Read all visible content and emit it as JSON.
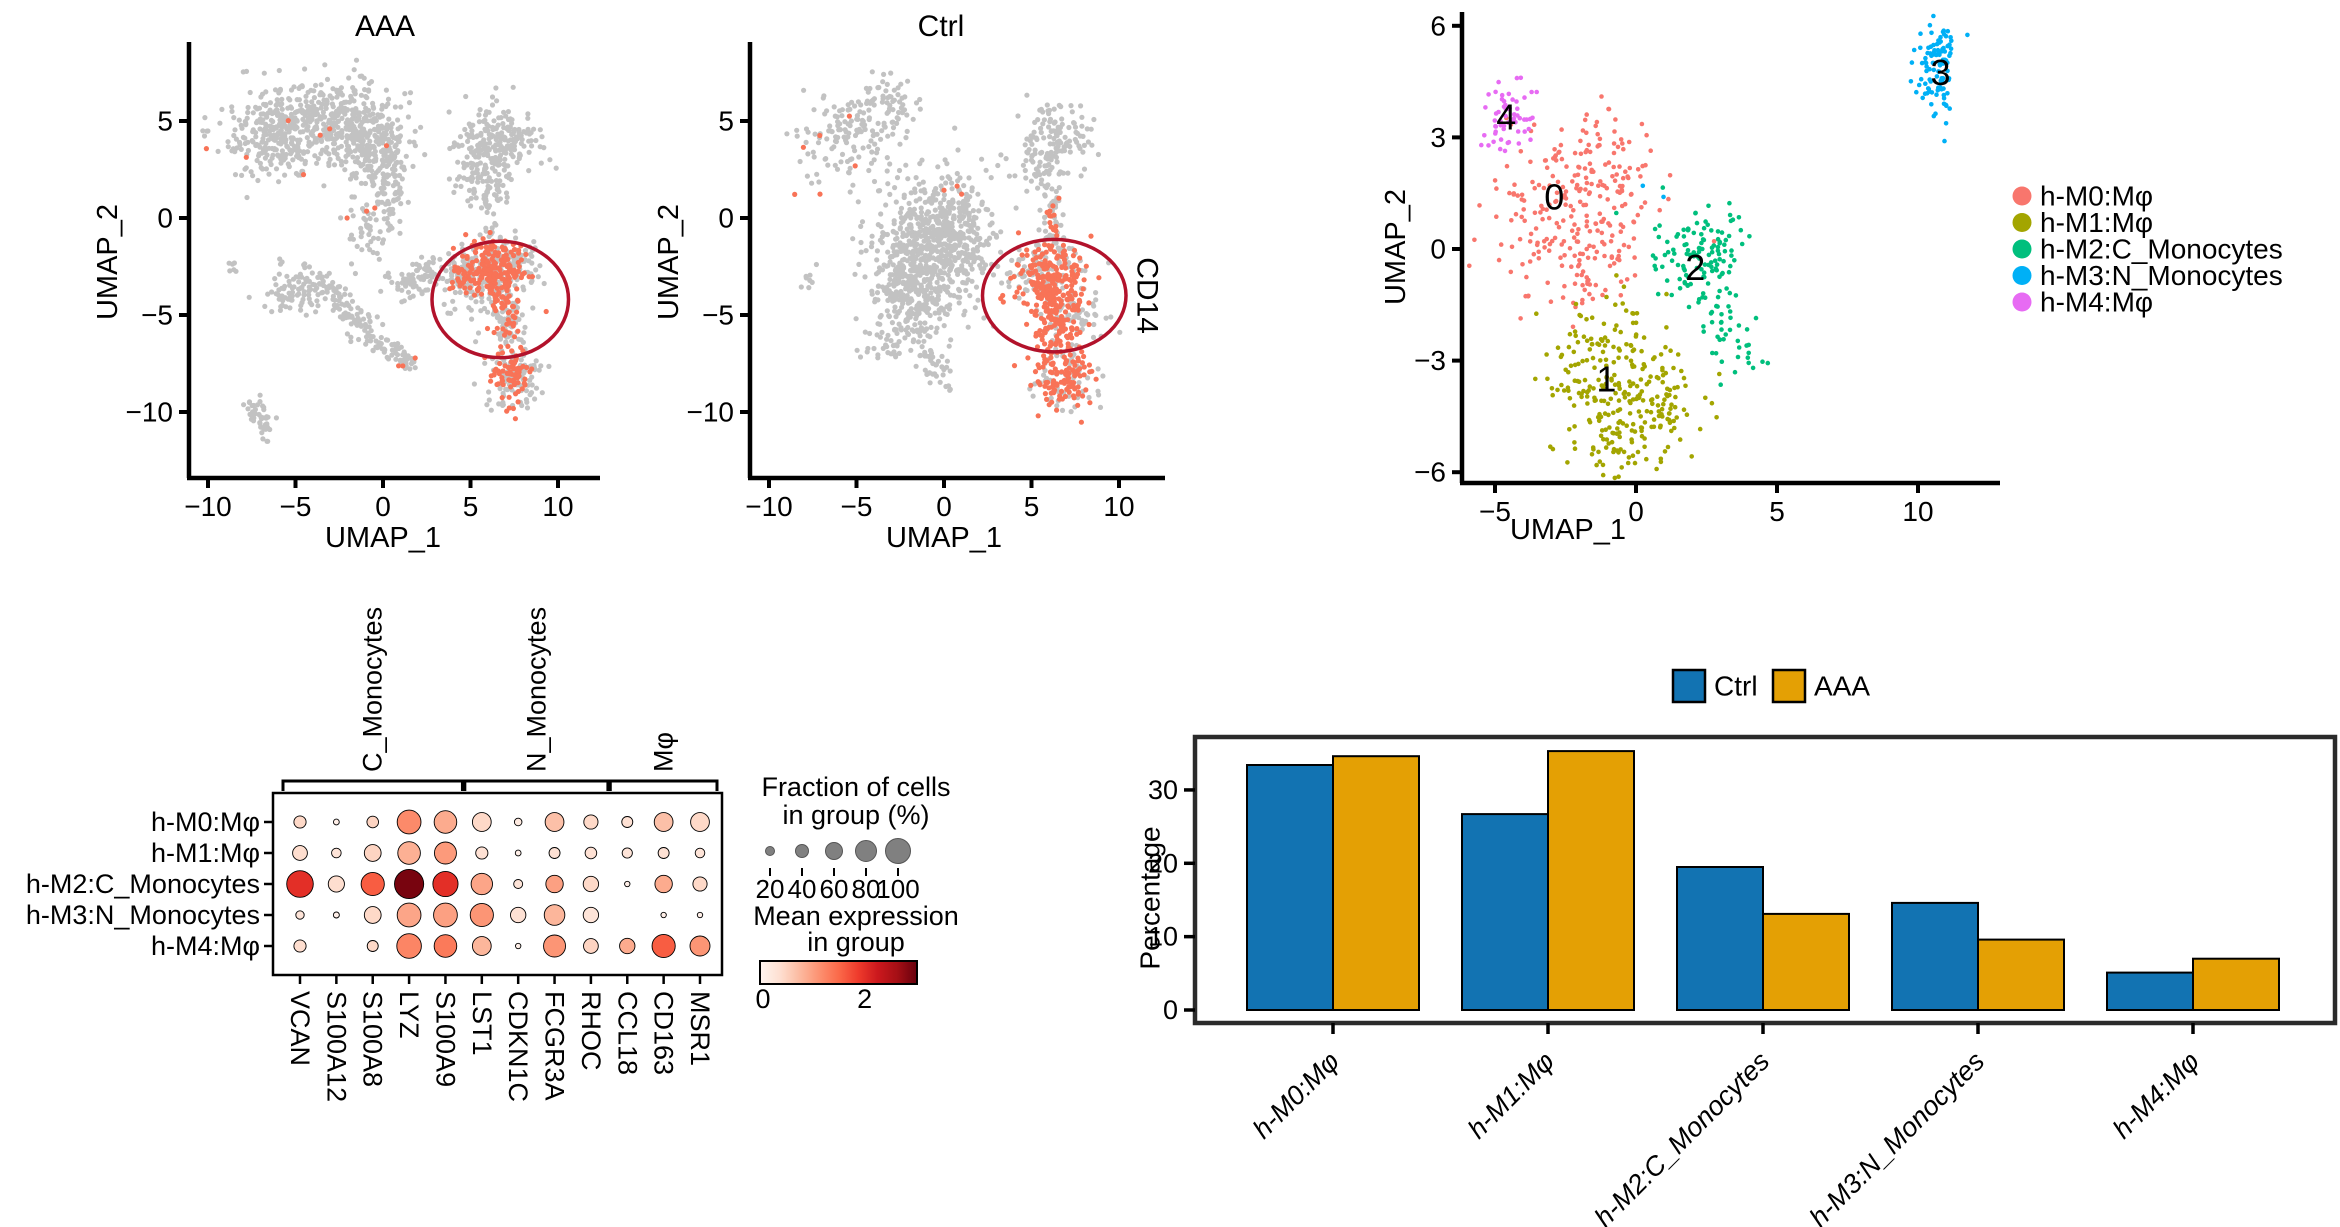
{
  "figure": {
    "background": "#ffffff"
  },
  "chart_data": [
    {
      "id": "umap_aaa",
      "type": "scatter",
      "title": "AAA",
      "xlabel": "UMAP_1",
      "ylabel": "UMAP_2",
      "xticks": [
        -10,
        -5,
        0,
        5,
        10
      ],
      "yticks": [
        5,
        0,
        -5,
        -10
      ],
      "xlim": [
        -11.1,
        12.4
      ],
      "ylim": [
        -13.3,
        9.0
      ],
      "colors": {
        "base": "#C2C2C2",
        "highlight": "#F87357",
        "circle": "#B2122B"
      },
      "circle": {
        "cx": 6.7,
        "cy": -4.2,
        "rx": 3.9,
        "ry": 3.0
      },
      "gray_blobs": [
        {
          "n": 300,
          "c": [
            -6.0,
            4.4
          ],
          "s": [
            1.5,
            1.1
          ]
        },
        {
          "n": 300,
          "c": [
            -2.6,
            5.1
          ],
          "s": [
            1.6,
            1.0
          ]
        },
        {
          "n": 200,
          "c": [
            -0.6,
            3.6
          ],
          "s": [
            1.1,
            1.0
          ]
        },
        {
          "n": 70,
          "c": [
            0.3,
            1.6
          ],
          "s": [
            0.5,
            1.2
          ]
        },
        {
          "n": 50,
          "c": [
            -0.8,
            -0.5
          ],
          "s": [
            0.7,
            1.1
          ]
        },
        {
          "n": 90,
          "c": [
            -5.0,
            -3.8
          ],
          "s": [
            0.85,
            0.75
          ]
        },
        {
          "n": 70,
          "l": [
            -3.5,
            -3.1,
            -1.3,
            -5.7
          ],
          "w": 0.35
        },
        {
          "n": 50,
          "l": [
            -1.6,
            -4.9,
            0.2,
            -7.1
          ],
          "w": 0.3
        },
        {
          "n": 40,
          "c": [
            1.2,
            -3.4
          ],
          "s": [
            0.55,
            0.5
          ]
        },
        {
          "n": 28,
          "c": [
            2.3,
            -2.6
          ],
          "s": [
            0.45,
            0.4
          ]
        },
        {
          "n": 45,
          "l": [
            -7.3,
            -9.4,
            -6.5,
            -11.5
          ],
          "w": 0.28
        },
        {
          "n": 6,
          "c": [
            -8.6,
            -2.6
          ],
          "s": [
            0.18,
            0.18
          ]
        },
        {
          "n": 32,
          "l": [
            0.5,
            -6.3,
            1.7,
            -7.9
          ],
          "w": 0.3
        },
        {
          "n": 210,
          "c": [
            6.6,
            3.9
          ],
          "s": [
            1.15,
            0.95
          ]
        },
        {
          "n": 60,
          "c": [
            5.5,
            2.3
          ],
          "s": [
            0.75,
            0.7
          ]
        },
        {
          "n": 40,
          "c": [
            6.2,
            0.8
          ],
          "s": [
            0.4,
            0.9
          ]
        },
        {
          "n": 190,
          "c": [
            5.8,
            -2.9
          ],
          "s": [
            1.25,
            0.95
          ]
        },
        {
          "n": 70,
          "c": [
            7.4,
            -2.2
          ],
          "s": [
            0.8,
            0.5
          ]
        },
        {
          "n": 60,
          "l": [
            6.8,
            -4.4,
            7.4,
            -6.4
          ],
          "w": 0.45
        },
        {
          "n": 90,
          "c": [
            7.5,
            -8.3
          ],
          "s": [
            0.8,
            0.85
          ]
        },
        {
          "n": 40,
          "c": [
            4.3,
            -3.1
          ],
          "s": [
            0.5,
            0.45
          ]
        }
      ],
      "highlight_blobs": [
        {
          "n": 170,
          "c": [
            6.3,
            -2.6
          ],
          "s": [
            1.05,
            0.75
          ]
        },
        {
          "n": 55,
          "c": [
            7.0,
            -4.4
          ],
          "s": [
            0.5,
            0.9
          ]
        },
        {
          "n": 75,
          "c": [
            7.4,
            -8.2
          ],
          "s": [
            0.7,
            0.75
          ]
        },
        {
          "n": 22,
          "c": [
            4.6,
            -3.2
          ],
          "s": [
            0.5,
            0.4
          ]
        },
        {
          "n": 7,
          "c": [
            -4.5,
            3.8
          ],
          "s": [
            2.2,
            1.2
          ]
        },
        {
          "n": 3,
          "c": [
            -1.3,
            0.3
          ],
          "s": [
            0.4,
            0.3
          ]
        },
        {
          "n": 3,
          "c": [
            1.1,
            -7.6
          ],
          "s": [
            0.3,
            0.3
          ]
        }
      ]
    },
    {
      "id": "umap_ctrl",
      "type": "scatter",
      "title": "Ctrl",
      "xlabel": "UMAP_1",
      "ylabel": "UMAP_2",
      "xticks": [
        -10,
        -5,
        0,
        5,
        10
      ],
      "yticks": [
        5,
        0,
        -5,
        -10
      ],
      "annotation": "CD14",
      "annotation_pos": [
        11.6,
        -4.0
      ],
      "colors": {
        "base": "#C2C2C2",
        "highlight": "#F87357",
        "circle": "#B2122B"
      },
      "circle": {
        "cx": 6.3,
        "cy": -4.0,
        "rx": 4.1,
        "ry": 2.9
      },
      "gray_blobs": [
        {
          "n": 140,
          "c": [
            -5.4,
            4.2
          ],
          "s": [
            1.7,
            1.3
          ]
        },
        {
          "n": 50,
          "c": [
            -3.3,
            6.0
          ],
          "s": [
            1.0,
            0.7
          ]
        },
        {
          "n": 550,
          "c": [
            -0.8,
            -1.7
          ],
          "s": [
            1.5,
            1.8
          ]
        },
        {
          "n": 180,
          "c": [
            0.8,
            -0.4
          ],
          "s": [
            1.0,
            1.4
          ]
        },
        {
          "n": 140,
          "c": [
            -1.9,
            -3.8
          ],
          "s": [
            1.0,
            0.9
          ]
        },
        {
          "n": 55,
          "l": [
            -1.6,
            -5.6,
            -0.2,
            -8.4
          ],
          "w": 0.4
        },
        {
          "n": 45,
          "c": [
            -3.1,
            -6.4
          ],
          "s": [
            0.8,
            0.6
          ]
        },
        {
          "n": 8,
          "c": [
            -7.7,
            -3.0
          ],
          "s": [
            0.25,
            0.3
          ]
        },
        {
          "n": 110,
          "c": [
            6.5,
            4.2
          ],
          "s": [
            1.15,
            0.9
          ]
        },
        {
          "n": 40,
          "c": [
            5.6,
            2.7
          ],
          "s": [
            0.8,
            0.7
          ]
        },
        {
          "n": 22,
          "c": [
            6.1,
            1.2
          ],
          "s": [
            0.45,
            1.0
          ]
        },
        {
          "n": 110,
          "c": [
            5.6,
            -2.8
          ],
          "s": [
            1.2,
            0.9
          ]
        },
        {
          "n": 55,
          "c": [
            7.6,
            -5.2
          ],
          "s": [
            0.85,
            0.6
          ]
        },
        {
          "n": 60,
          "c": [
            6.8,
            -8.0
          ],
          "s": [
            0.9,
            1.0
          ]
        },
        {
          "n": 18,
          "c": [
            6.2,
            -0.3
          ],
          "s": [
            0.25,
            0.8
          ]
        }
      ],
      "highlight_blobs": [
        {
          "n": 200,
          "c": [
            6.1,
            -3.2
          ],
          "s": [
            1.1,
            0.95
          ]
        },
        {
          "n": 100,
          "c": [
            6.4,
            -5.5
          ],
          "s": [
            0.7,
            1.0
          ]
        },
        {
          "n": 120,
          "c": [
            6.7,
            -8.2
          ],
          "s": [
            0.8,
            0.9
          ]
        },
        {
          "n": 14,
          "c": [
            6.2,
            -0.6
          ],
          "s": [
            0.22,
            0.8
          ]
        },
        {
          "n": 6,
          "c": [
            -6.0,
            3.2
          ],
          "s": [
            1.5,
            1.3
          ]
        },
        {
          "n": 3,
          "c": [
            0.6,
            1.6
          ],
          "s": [
            0.4,
            0.5
          ]
        }
      ]
    },
    {
      "id": "umap_clusters",
      "type": "scatter",
      "xlabel": "UMAP_1",
      "ylabel": "UMAP_2",
      "xticks": [
        -5,
        0,
        5,
        10
      ],
      "yticks": [
        6,
        3,
        0,
        -3,
        -6
      ],
      "clusters": [
        {
          "name": "h-M0:Mφ",
          "color": "#F8766D",
          "label": "0",
          "label_pos": [
            -2.9,
            1.4
          ],
          "blobs": [
            {
              "n": 170,
              "c": [
                -2.6,
                1.1
              ],
              "s": [
                1.4,
                1.05
              ]
            },
            {
              "n": 60,
              "c": [
                -0.9,
                2.35
              ],
              "s": [
                0.8,
                0.6
              ]
            },
            {
              "n": 50,
              "c": [
                -1.6,
                -0.5
              ],
              "s": [
                0.7,
                0.7
              ]
            },
            {
              "n": 5,
              "c": [
                -3.6,
                -1.6
              ],
              "s": [
                0.4,
                0.5
              ]
            }
          ]
        },
        {
          "name": "h-M1:Mφ",
          "color": "#A3A500",
          "label": "1",
          "label_pos": [
            -1.05,
            -3.5
          ],
          "blobs": [
            {
              "n": 200,
              "c": [
                -0.9,
                -3.4
              ],
              "s": [
                1.1,
                1.0
              ]
            },
            {
              "n": 55,
              "c": [
                0.9,
                -4.5
              ],
              "s": [
                0.8,
                0.6
              ]
            },
            {
              "n": 40,
              "c": [
                -0.6,
                -5.3
              ],
              "s": [
                0.6,
                0.4
              ]
            }
          ]
        },
        {
          "name": "h-M2:C_Monocytes",
          "color": "#00BF7D",
          "label": "2",
          "label_pos": [
            2.1,
            -0.5
          ],
          "blobs": [
            {
              "n": 115,
              "c": [
                2.4,
                -0.3
              ],
              "s": [
                0.8,
                0.7
              ]
            },
            {
              "n": 40,
              "c": [
                3.2,
                -2.4
              ],
              "s": [
                0.5,
                0.8
              ]
            },
            {
              "n": 12,
              "c": [
                1.0,
                0.5
              ],
              "s": [
                0.7,
                0.6
              ]
            }
          ]
        },
        {
          "name": "h-M3:N_Monocytes",
          "color": "#00B0F6",
          "label": "3",
          "label_pos": [
            10.8,
            4.75
          ],
          "blobs": [
            {
              "n": 105,
              "c": [
                10.7,
                4.8
              ],
              "s": [
                0.35,
                0.62
              ]
            },
            {
              "n": 2,
              "c": [
                0.6,
                1.6
              ],
              "s": [
                0.7,
                0.3
              ]
            }
          ]
        },
        {
          "name": "h-M4:Mφ",
          "color": "#E76BF3",
          "label": "4",
          "label_pos": [
            -4.6,
            3.55
          ],
          "blobs": [
            {
              "n": 58,
              "c": [
                -4.6,
                3.5
              ],
              "s": [
                0.42,
                0.52
              ]
            }
          ]
        }
      ],
      "legend": [
        "h-M0:Mφ",
        "h-M1:Mφ",
        "h-M2:C_Monocytes",
        "h-M3:N_Monocytes",
        "h-M4:Mφ"
      ]
    },
    {
      "id": "dotplot",
      "type": "heatmap",
      "rows": [
        "h-M0:Mφ",
        "h-M1:Mφ",
        "h-M2:C_Monocytes",
        "h-M3:N_Monocytes",
        "h-M4:Mφ"
      ],
      "genes": [
        "VCAN",
        "S100A12",
        "S100A8",
        "LYZ",
        "S100A9",
        "LST1",
        "CDKN1C",
        "FCGR3A",
        "RHOC",
        "CCL18",
        "CD163",
        "MSR1"
      ],
      "gene_groups": [
        {
          "label": "C_Monocytes",
          "from": 0,
          "to": 4
        },
        {
          "label": "N_Monocytes",
          "from": 5,
          "to": 8
        },
        {
          "label": "Mφ",
          "from": 9,
          "to": 11
        }
      ],
      "fraction_pct": [
        [
          30,
          5,
          28,
          75,
          70,
          55,
          12,
          55,
          38,
          25,
          55,
          55
        ],
        [
          40,
          20,
          48,
          70,
          68,
          30,
          5,
          25,
          28,
          22,
          25,
          20
        ],
        [
          85,
          45,
          72,
          95,
          80,
          65,
          18,
          50,
          42,
          4,
          50,
          38
        ],
        [
          15,
          6,
          48,
          75,
          75,
          72,
          42,
          62,
          42,
          0,
          4,
          4
        ],
        [
          30,
          0,
          25,
          78,
          70,
          55,
          4,
          68,
          40,
          42,
          72,
          60
        ]
      ],
      "mean_expression": [
        [
          0.45,
          0.1,
          0.5,
          1.2,
          0.9,
          0.45,
          0.2,
          0.7,
          0.45,
          0.35,
          0.7,
          0.45
        ],
        [
          0.4,
          0.3,
          0.5,
          0.85,
          1.05,
          0.35,
          0.1,
          0.35,
          0.35,
          0.3,
          0.35,
          0.3
        ],
        [
          2.0,
          0.4,
          1.6,
          2.9,
          2.0,
          0.95,
          0.3,
          1.0,
          0.45,
          0.1,
          0.9,
          0.45
        ],
        [
          0.3,
          0.1,
          0.45,
          0.95,
          1.0,
          1.1,
          0.35,
          0.8,
          0.3,
          0,
          0.1,
          0.1
        ],
        [
          0.4,
          0,
          0.45,
          1.25,
          1.35,
          0.8,
          0.1,
          1.1,
          0.5,
          0.9,
          1.6,
          1.1
        ]
      ],
      "size_legend": {
        "title_lines": [
          "Fraction of cells",
          "in group (%)"
        ],
        "values": [
          20,
          40,
          60,
          80,
          100
        ]
      },
      "color_legend": {
        "title_lines": [
          "Mean expression",
          "in group"
        ],
        "min_label": "0",
        "mid_label": "2",
        "vmin": 0,
        "vmax": 3
      }
    },
    {
      "id": "bar_percentage",
      "type": "bar",
      "categories": [
        "h-M0:Mφ",
        "h-M1:Mφ",
        "h-M2:C_Monocytes",
        "h-M3:N_Monocytes",
        "h-M4:Mφ"
      ],
      "series": [
        {
          "name": "Ctrl",
          "color": "#1273B2",
          "values": [
            33.4,
            26.7,
            19.5,
            14.6,
            5.1
          ]
        },
        {
          "name": "AAA",
          "color": "#E4A004",
          "values": [
            34.6,
            35.3,
            13.1,
            9.6,
            7.0
          ]
        }
      ],
      "ylabel": "Percentage",
      "yticks": [
        0,
        10,
        20,
        30
      ],
      "ylim": [
        0,
        37.4
      ],
      "legend_position": "top"
    }
  ]
}
